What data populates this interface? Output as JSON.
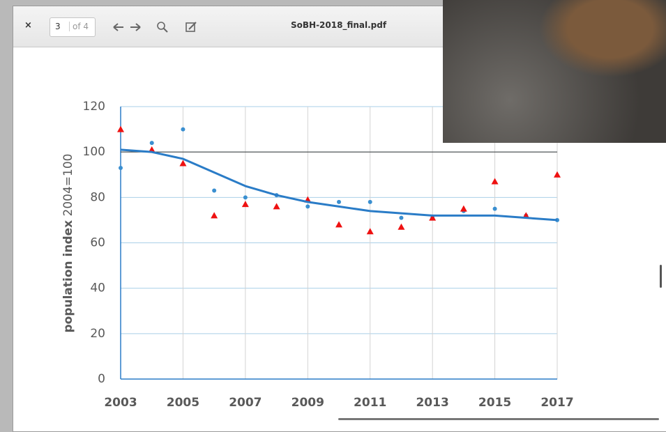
{
  "toolbar": {
    "close": "×",
    "page": "3",
    "page_count": "of 4",
    "filename": "SoBH-2018_final.pdf"
  },
  "chart_data": {
    "type": "scatter",
    "ylabel": {
      "main": "population index",
      "base": "2004=100"
    },
    "x": [
      2003,
      2004,
      2005,
      2006,
      2007,
      2008,
      2009,
      2010,
      2011,
      2012,
      2013,
      2014,
      2015,
      2016,
      2017
    ],
    "xlim": [
      2003,
      2017
    ],
    "xticks": [
      2003,
      2005,
      2007,
      2009,
      2011,
      2013,
      2015,
      2017
    ],
    "ylim": [
      0,
      120
    ],
    "yticks": [
      0,
      20,
      40,
      60,
      80,
      100,
      120
    ],
    "grid": true,
    "reference": 100,
    "series": [
      {
        "mode": "markers",
        "marker": "circle",
        "color": "#3a8fd0",
        "values": [
          93,
          104,
          110,
          83,
          80,
          81,
          76,
          78,
          78,
          71,
          71,
          74,
          75,
          72,
          70
        ]
      },
      {
        "mode": "markers",
        "marker": "triangle",
        "color": "#ee1111",
        "values": [
          110,
          101,
          95,
          72,
          77,
          76,
          79,
          68,
          65,
          67,
          71,
          75,
          87,
          72,
          90
        ]
      },
      {
        "mode": "line",
        "color": "#2a7cc7",
        "values": [
          101,
          100,
          97,
          91,
          85,
          81,
          78,
          76,
          74,
          73,
          72,
          72,
          72,
          71,
          70
        ]
      }
    ]
  }
}
